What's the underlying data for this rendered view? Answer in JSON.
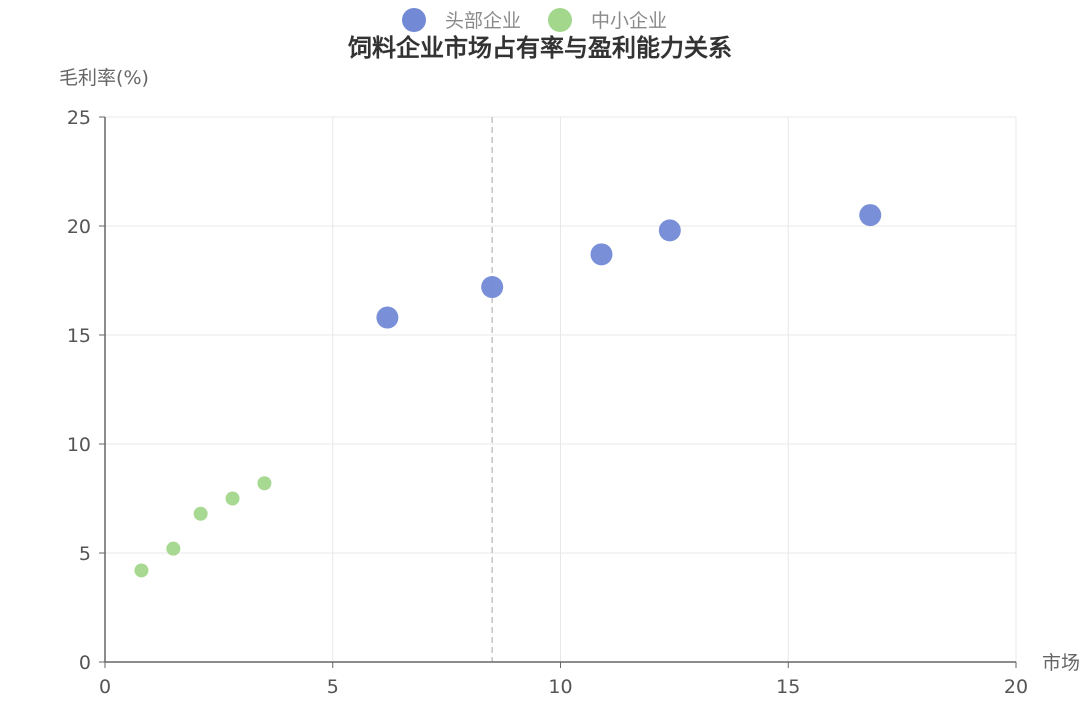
{
  "chart_data": {
    "type": "scatter",
    "title": "饲料企业市场占有率与盈利能力关系",
    "xlabel": "市场",
    "ylabel": "毛利率(%)",
    "xlim": [
      0,
      20
    ],
    "ylim": [
      0,
      25
    ],
    "x_ticks": [
      0,
      5,
      10,
      15,
      20
    ],
    "y_ticks": [
      0,
      5,
      10,
      15,
      20,
      25
    ],
    "grid": true,
    "legend_position": "top-center",
    "reference_line_x": 8.5,
    "series": [
      {
        "name": "头部企业",
        "color": "#7289d6",
        "points": [
          {
            "x": 6.2,
            "y": 15.8
          },
          {
            "x": 8.5,
            "y": 17.2
          },
          {
            "x": 10.9,
            "y": 18.7
          },
          {
            "x": 12.4,
            "y": 19.8
          },
          {
            "x": 16.8,
            "y": 20.5
          }
        ]
      },
      {
        "name": "中小企业",
        "color": "#a3d78c",
        "points": [
          {
            "x": 0.8,
            "y": 4.2
          },
          {
            "x": 1.5,
            "y": 5.2
          },
          {
            "x": 2.1,
            "y": 6.8
          },
          {
            "x": 2.8,
            "y": 7.5
          },
          {
            "x": 3.5,
            "y": 8.2
          }
        ]
      }
    ]
  }
}
